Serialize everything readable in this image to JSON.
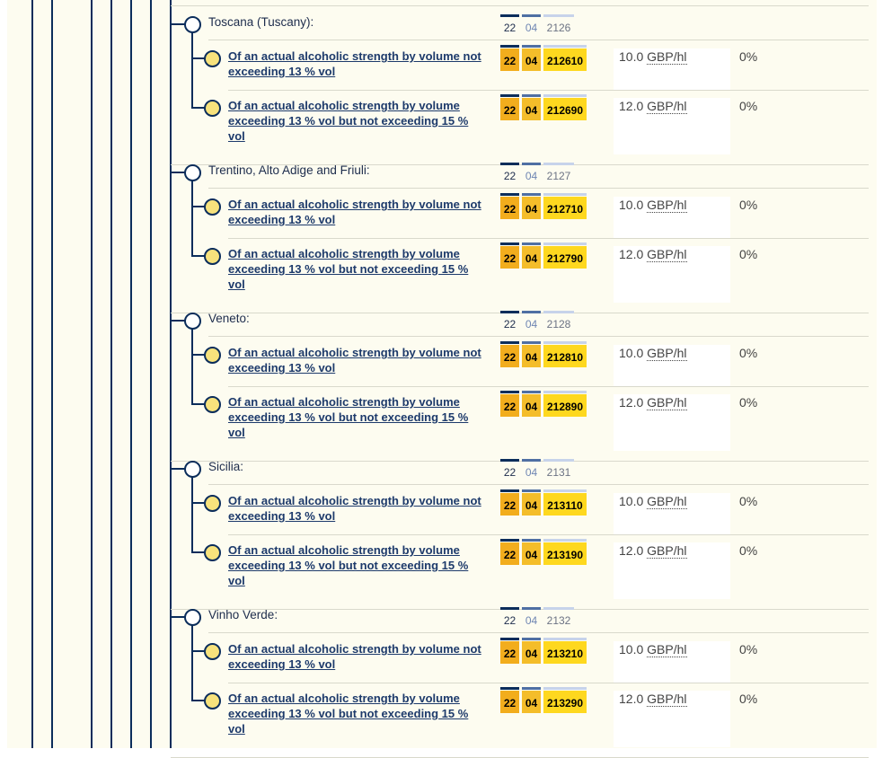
{
  "groups": [
    {
      "heading": "Toscana (Tuscany):",
      "code": [
        "22",
        "04",
        "2126"
      ],
      "items": [
        {
          "description": "Of an actual alcoholic strength by volume not exceeding 13 % vol",
          "code": [
            "22",
            "04",
            "212610"
          ],
          "duty_value": "10.0",
          "duty_unit": "GBP/hl",
          "rate": "0%"
        },
        {
          "description": "Of an actual alcoholic strength by volume exceeding 13 % vol but not exceeding 15 % vol",
          "code": [
            "22",
            "04",
            "212690"
          ],
          "duty_value": "12.0",
          "duty_unit": "GBP/hl",
          "rate": "0%"
        }
      ]
    },
    {
      "heading": "Trentino, Alto Adige and Friuli:",
      "code": [
        "22",
        "04",
        "2127"
      ],
      "items": [
        {
          "description": "Of an actual alcoholic strength by volume not exceeding 13 % vol",
          "code": [
            "22",
            "04",
            "212710"
          ],
          "duty_value": "10.0",
          "duty_unit": "GBP/hl",
          "rate": "0%"
        },
        {
          "description": "Of an actual alcoholic strength by volume exceeding 13 % vol but not exceeding 15 % vol",
          "code": [
            "22",
            "04",
            "212790"
          ],
          "duty_value": "12.0",
          "duty_unit": "GBP/hl",
          "rate": "0%"
        }
      ]
    },
    {
      "heading": "Veneto:",
      "code": [
        "22",
        "04",
        "2128"
      ],
      "items": [
        {
          "description": "Of an actual alcoholic strength by volume not exceeding 13 % vol",
          "code": [
            "22",
            "04",
            "212810"
          ],
          "duty_value": "10.0",
          "duty_unit": "GBP/hl",
          "rate": "0%"
        },
        {
          "description": "Of an actual alcoholic strength by volume exceeding 13 % vol but not exceeding 15 % vol",
          "code": [
            "22",
            "04",
            "212890"
          ],
          "duty_value": "12.0",
          "duty_unit": "GBP/hl",
          "rate": "0%"
        }
      ]
    },
    {
      "heading": "Sicilia:",
      "code": [
        "22",
        "04",
        "2131"
      ],
      "items": [
        {
          "description": "Of an actual alcoholic strength by volume not exceeding 13 % vol",
          "code": [
            "22",
            "04",
            "213110"
          ],
          "duty_value": "10.0",
          "duty_unit": "GBP/hl",
          "rate": "0%"
        },
        {
          "description": "Of an actual alcoholic strength by volume exceeding 13 % vol but not exceeding 15 % vol",
          "code": [
            "22",
            "04",
            "213190"
          ],
          "duty_value": "12.0",
          "duty_unit": "GBP/hl",
          "rate": "0%"
        }
      ]
    },
    {
      "heading": "Vinho Verde:",
      "code": [
        "22",
        "04",
        "2132"
      ],
      "items": [
        {
          "description": "Of an actual alcoholic strength by volume not exceeding 13 % vol",
          "code": [
            "22",
            "04",
            "213210"
          ],
          "duty_value": "10.0",
          "duty_unit": "GBP/hl",
          "rate": "0%"
        },
        {
          "description": "Of an actual alcoholic strength by volume exceeding 13 % vol but not exceeding 15 % vol",
          "code": [
            "22",
            "04",
            "213290"
          ],
          "duty_value": "12.0",
          "duty_unit": "GBP/hl",
          "rate": "0%"
        }
      ]
    }
  ],
  "colors": {
    "tree_line": "#0b2d5b",
    "panel_background": "#fdfcf0",
    "leaf_node_fill": "#f7e27c",
    "code_chapter": "#f2ad1d",
    "code_heading": "#f4bd2a",
    "code_subheading": "#fed81f"
  }
}
